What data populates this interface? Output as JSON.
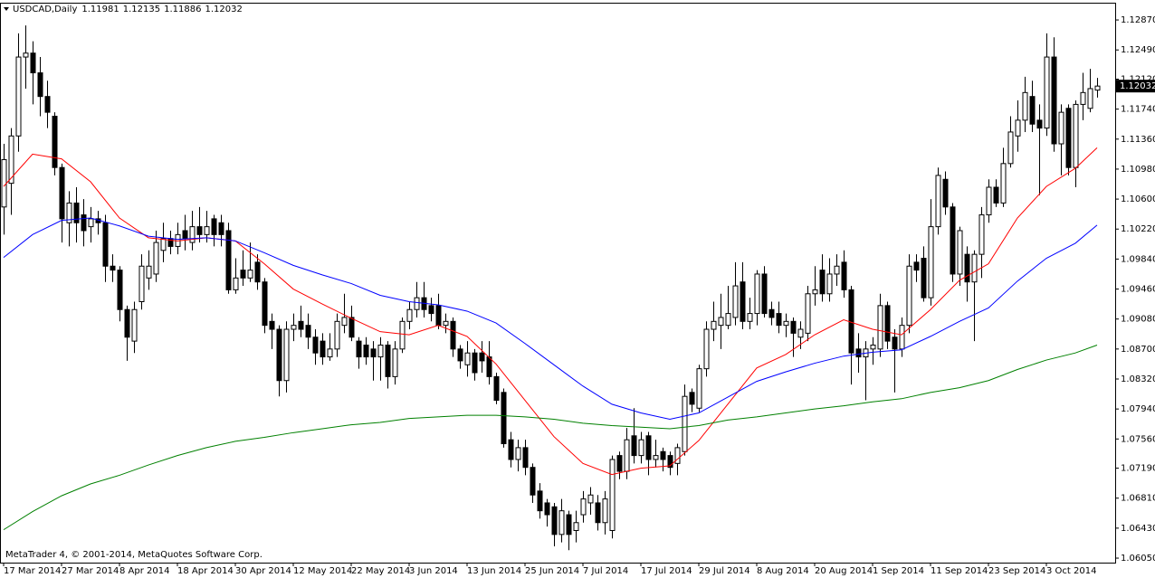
{
  "chart_data": {
    "type": "candlestick",
    "symbol": "USDCAD,Daily",
    "footer": "MetaTrader 4, © 2001-2014, MetaQuotes Software Corp.",
    "categories": [
      "17 Mar 2014",
      null,
      null,
      null,
      null,
      null,
      null,
      null,
      "27 Mar 2014",
      null,
      null,
      null,
      null,
      null,
      null,
      null,
      "8 Apr 2014",
      null,
      null,
      null,
      null,
      null,
      null,
      null,
      "18 Apr 2014",
      null,
      null,
      null,
      null,
      null,
      null,
      null,
      "30 Apr 2014",
      null,
      null,
      null,
      null,
      null,
      null,
      null,
      "12 May 2014",
      null,
      null,
      null,
      null,
      null,
      null,
      null,
      "22 May 2014",
      null,
      null,
      null,
      null,
      null,
      null,
      null,
      "3 Jun 2014",
      null,
      null,
      null,
      null,
      null,
      null,
      null,
      "13 Jun 2014",
      null,
      null,
      null,
      null,
      null,
      null,
      null,
      "25 Jun 2014",
      null,
      null,
      null,
      null,
      null,
      null,
      null,
      "7 Jul 2014",
      null,
      null,
      null,
      null,
      null,
      null,
      null,
      "17 Jul 2014",
      null,
      null,
      null,
      null,
      null,
      null,
      null,
      "29 Jul 2014",
      null,
      null,
      null,
      null,
      null,
      null,
      null,
      "8 Aug 2014",
      null,
      null,
      null,
      null,
      null,
      null,
      null,
      "20 Aug 2014",
      null,
      null,
      null,
      null,
      null,
      null,
      null,
      "1 Sep 2014",
      null,
      null,
      null,
      null,
      null,
      null,
      null,
      "11 Sep 2014",
      null,
      null,
      null,
      null,
      null,
      null,
      null,
      "23 Sep 2014",
      null,
      null,
      null,
      null,
      null,
      null,
      null,
      "3 Oct 2014",
      null,
      null,
      null,
      null,
      null,
      null,
      null
    ],
    "open": [
      1.105,
      1.108,
      1.114,
      1.124,
      1.1245,
      1.122,
      1.119,
      1.1165,
      1.11,
      1.103,
      1.1055,
      1.104,
      1.1025,
      1.1035,
      1.103,
      1.0975,
      1.097,
      1.092,
      1.088,
      1.093,
      1.096,
      1.0965,
      1.0995,
      1.101,
      1.1,
      1.102,
      1.1005,
      1.1025,
      1.1015,
      1.1035,
      1.103,
      1.102,
      1.0945,
      1.097,
      1.096,
      1.098,
      1.0955,
      1.0905,
      1.0895,
      1.083,
      1.0895,
      1.0905,
      1.09,
      1.0885,
      1.088,
      1.086,
      1.087,
      1.09,
      1.091,
      1.088,
      1.0875,
      1.087,
      1.086,
      1.0875,
      1.0835,
      1.087,
      1.0905,
      1.092,
      1.0935,
      1.0925,
      1.0925,
      1.09,
      1.0905,
      1.087,
      1.085,
      1.0865,
      1.0865,
      1.086,
      1.0835,
      1.0815,
      1.0755,
      1.073,
      1.0745,
      1.072,
      1.069,
      1.0675,
      1.067,
      1.0635,
      1.066,
      1.064,
      1.066,
      1.0675,
      1.0675,
      1.065,
      1.064,
      1.0735,
      1.0715,
      1.076,
      1.0735,
      1.076,
      1.073,
      1.074,
      1.0735,
      1.0725,
      1.074,
      1.0815,
      1.0795,
      1.0845,
      1.0895,
      1.09,
      1.09,
      1.091,
      1.0955,
      1.0905,
      1.0915,
      1.0965,
      1.092,
      1.0915,
      1.09,
      1.0905,
      1.0885,
      1.089,
      1.094,
      1.097,
      1.094,
      1.0965,
      1.098,
      1.0945,
      1.087,
      1.086,
      1.087,
      1.087,
      1.0925,
      1.0885,
      1.087,
      1.09,
      1.098,
      1.0985,
      1.0935,
      1.1025,
      1.1085,
      1.105,
      1.0965,
      1.099,
      1.0955,
      1.099,
      1.104,
      1.1075,
      1.1055,
      1.1105,
      1.114,
      1.116,
      1.119,
      1.116,
      1.115,
      1.124,
      1.113,
      1.1175,
      1.11,
      1.118,
      1.1175,
      1.11981
    ],
    "high": [
      1.113,
      1.115,
      1.127,
      1.128,
      1.126,
      1.124,
      1.121,
      1.117,
      1.1105,
      1.107,
      1.1075,
      1.106,
      1.105,
      1.1045,
      1.104,
      1.099,
      1.0975,
      1.0925,
      1.093,
      1.099,
      1.0995,
      1.102,
      1.103,
      1.102,
      1.103,
      1.104,
      1.1045,
      1.105,
      1.1045,
      1.104,
      1.104,
      1.103,
      1.0985,
      1.0995,
      1.1005,
      1.099,
      1.096,
      1.0915,
      1.09,
      1.0905,
      1.0915,
      1.0925,
      1.0915,
      1.0895,
      1.089,
      1.089,
      1.0915,
      1.094,
      1.0925,
      1.0885,
      1.0885,
      1.088,
      1.0885,
      1.088,
      1.088,
      1.091,
      1.093,
      1.0955,
      1.0955,
      1.0935,
      1.094,
      1.0915,
      1.091,
      1.0875,
      1.088,
      1.087,
      1.088,
      1.088,
      1.084,
      1.082,
      1.0765,
      1.0755,
      1.0755,
      1.0725,
      1.07,
      1.068,
      1.0675,
      1.068,
      1.0665,
      1.0665,
      1.069,
      1.0695,
      1.0685,
      1.069,
      1.0735,
      1.074,
      1.077,
      1.0795,
      1.0765,
      1.0765,
      1.0755,
      1.0745,
      1.074,
      1.075,
      1.0825,
      1.082,
      1.085,
      1.0905,
      1.093,
      1.094,
      1.095,
      1.098,
      1.098,
      1.0935,
      1.097,
      1.0975,
      1.093,
      1.093,
      1.0915,
      1.091,
      1.0905,
      1.095,
      1.0975,
      1.099,
      1.0985,
      1.099,
      1.0995,
      1.095,
      1.089,
      1.088,
      1.0885,
      1.094,
      1.093,
      1.0895,
      1.091,
      1.099,
      1.099,
      1.1,
      1.106,
      1.11,
      1.1095,
      1.1055,
      1.1025,
      1.1,
      1.0995,
      1.105,
      1.1085,
      1.1085,
      1.1125,
      1.1165,
      1.1185,
      1.1215,
      1.121,
      1.118,
      1.127,
      1.1265,
      1.118,
      1.118,
      1.1185,
      1.122,
      1.1225,
      1.12135
    ],
    "low": [
      1.1015,
      1.104,
      1.112,
      1.12,
      1.118,
      1.1165,
      1.115,
      1.109,
      1.1005,
      1.1,
      1.1005,
      1.1,
      1.1005,
      1.1015,
      1.0955,
      1.0955,
      1.0905,
      1.0855,
      1.0865,
      1.092,
      1.0945,
      1.0955,
      1.098,
      1.099,
      1.099,
      1.0995,
      1.0995,
      1.1005,
      1.1005,
      1.1,
      1.1,
      1.094,
      1.094,
      1.095,
      1.0955,
      1.0945,
      1.089,
      1.087,
      1.081,
      1.0815,
      1.088,
      1.0885,
      1.087,
      1.085,
      1.085,
      1.0855,
      1.086,
      1.089,
      1.088,
      1.0845,
      1.085,
      1.083,
      1.083,
      1.082,
      1.0825,
      1.0865,
      1.0895,
      1.091,
      1.091,
      1.0905,
      1.0895,
      1.089,
      1.086,
      1.0845,
      1.0835,
      1.083,
      1.084,
      1.0825,
      1.08,
      1.0745,
      1.072,
      1.0715,
      1.071,
      1.0675,
      1.0655,
      1.0645,
      1.062,
      1.0625,
      1.0615,
      1.0625,
      1.065,
      1.066,
      1.064,
      1.0635,
      1.063,
      1.0705,
      1.0705,
      1.0725,
      1.0725,
      1.071,
      1.072,
      1.0715,
      1.071,
      1.071,
      1.0735,
      1.079,
      1.079,
      1.0835,
      1.088,
      1.087,
      1.0895,
      1.09,
      1.0895,
      1.0895,
      1.09,
      1.091,
      1.09,
      1.089,
      1.0885,
      1.086,
      1.087,
      1.088,
      1.0925,
      1.093,
      1.093,
      1.095,
      1.0935,
      1.0825,
      1.084,
      1.0805,
      1.085,
      1.086,
      1.087,
      1.0815,
      1.086,
      1.089,
      1.0955,
      1.093,
      1.0925,
      1.1015,
      1.104,
      1.0955,
      1.095,
      1.093,
      1.088,
      1.096,
      1.103,
      1.105,
      1.105,
      1.11,
      1.112,
      1.1145,
      1.1145,
      1.1065,
      1.114,
      1.112,
      1.109,
      1.109,
      1.1075,
      1.116,
      1.117,
      1.11886
    ],
    "close": [
      1.111,
      1.114,
      1.124,
      1.1245,
      1.122,
      1.119,
      1.117,
      1.11,
      1.1035,
      1.1055,
      1.103,
      1.102,
      1.1035,
      1.103,
      1.0975,
      1.097,
      1.092,
      1.0885,
      1.092,
      1.0975,
      1.0975,
      1.1005,
      1.101,
      1.1,
      1.1015,
      1.101,
      1.1025,
      1.1015,
      1.1025,
      1.1015,
      1.1015,
      1.0945,
      1.096,
      1.096,
      1.097,
      1.0955,
      1.09,
      1.0895,
      1.083,
      1.0895,
      1.09,
      1.0895,
      1.0885,
      1.0865,
      1.086,
      1.087,
      1.0905,
      1.091,
      1.0885,
      1.086,
      1.086,
      1.086,
      1.0875,
      1.0835,
      1.087,
      1.0905,
      1.092,
      1.0935,
      1.092,
      1.0915,
      1.09,
      1.0905,
      1.087,
      1.0855,
      1.0865,
      1.084,
      1.0855,
      1.0835,
      1.0805,
      1.075,
      1.073,
      1.0745,
      1.072,
      1.0685,
      1.0665,
      1.066,
      1.0635,
      1.0665,
      1.0635,
      1.065,
      1.068,
      1.0685,
      1.065,
      1.068,
      1.073,
      1.0715,
      1.0755,
      1.0735,
      1.0755,
      1.073,
      1.0735,
      1.073,
      1.072,
      1.0745,
      1.081,
      1.08,
      1.0845,
      1.0895,
      1.0905,
      1.091,
      1.0915,
      1.095,
      1.0905,
      1.0915,
      1.0965,
      1.0915,
      1.091,
      1.09,
      1.0905,
      1.089,
      1.0895,
      1.094,
      1.0945,
      1.094,
      1.0965,
      1.0975,
      1.0945,
      1.0865,
      1.086,
      1.087,
      1.0875,
      1.0925,
      1.088,
      1.087,
      1.09,
      1.0975,
      1.097,
      1.0935,
      1.1025,
      1.109,
      1.105,
      1.0965,
      1.102,
      1.0955,
      1.099,
      1.104,
      1.1075,
      1.1055,
      1.1105,
      1.1145,
      1.116,
      1.1195,
      1.1155,
      1.115,
      1.124,
      1.113,
      1.117,
      1.11,
      1.118,
      1.1195,
      1.12,
      1.12032
    ],
    "series": [
      {
        "color": "#ff0000",
        "x": [
          0,
          4,
          8,
          12,
          16,
          20,
          24,
          28,
          32,
          36,
          40,
          44,
          48,
          52,
          56,
          60,
          64,
          68,
          72,
          76,
          80,
          84,
          88,
          92,
          96,
          100,
          104,
          108,
          112,
          116,
          120,
          124,
          128,
          132,
          136,
          140,
          144,
          148,
          151
        ],
        "values": [
          1.1076,
          1.1117,
          1.1111,
          1.1082,
          1.1036,
          1.1011,
          1.1007,
          1.1011,
          1.1007,
          1.0978,
          1.0946,
          1.0927,
          1.0909,
          1.0892,
          1.0888,
          1.09,
          1.0886,
          1.0851,
          1.0805,
          1.0759,
          1.0725,
          1.0711,
          1.0719,
          1.0722,
          1.0754,
          1.08,
          1.0846,
          1.0863,
          1.0888,
          1.0907,
          1.0895,
          1.0888,
          1.092,
          1.0957,
          1.0978,
          1.1036,
          1.1076,
          1.1099,
          1.1125
        ]
      },
      {
        "color": "#0000ff",
        "x": [
          0,
          4,
          8,
          12,
          16,
          20,
          24,
          28,
          32,
          36,
          40,
          44,
          48,
          52,
          56,
          60,
          64,
          68,
          72,
          76,
          80,
          84,
          88,
          92,
          96,
          100,
          104,
          108,
          112,
          116,
          120,
          124,
          128,
          132,
          136,
          140,
          144,
          148,
          151
        ],
        "values": [
          1.0986,
          1.1015,
          1.1033,
          1.1036,
          1.1026,
          1.1013,
          1.1009,
          1.1011,
          1.1007,
          1.0992,
          1.0976,
          1.0964,
          1.0953,
          1.0938,
          1.093,
          1.0926,
          1.0918,
          1.0903,
          1.0877,
          1.085,
          1.0823,
          1.08,
          1.0789,
          1.0781,
          1.0789,
          1.0809,
          1.0829,
          1.0841,
          1.0852,
          1.0861,
          1.0866,
          1.0869,
          1.0886,
          1.0905,
          1.0922,
          1.0956,
          1.0985,
          1.1004,
          1.1027
        ]
      },
      {
        "color": "#008000",
        "x": [
          0,
          4,
          8,
          12,
          16,
          20,
          24,
          28,
          32,
          36,
          40,
          44,
          48,
          52,
          56,
          60,
          64,
          68,
          72,
          76,
          80,
          84,
          88,
          92,
          96,
          100,
          104,
          108,
          112,
          116,
          120,
          124,
          128,
          132,
          136,
          140,
          144,
          148,
          151
        ],
        "values": [
          1.0641,
          1.0664,
          1.0684,
          1.0699,
          1.071,
          1.0723,
          1.0735,
          1.0745,
          1.0753,
          1.0758,
          1.0764,
          1.0769,
          1.0774,
          1.0777,
          1.0782,
          1.0784,
          1.0786,
          1.0786,
          1.0784,
          1.0781,
          1.0776,
          1.0773,
          1.0771,
          1.0769,
          1.0773,
          1.078,
          1.0784,
          1.0789,
          1.0794,
          1.0798,
          1.0803,
          1.0807,
          1.0815,
          1.0821,
          1.083,
          1.0844,
          1.0856,
          1.0865,
          1.0875
        ]
      }
    ],
    "ylim": [
      1.05993,
      1.13077
    ],
    "yticks": [
      {
        "value": 1.1287,
        "label": "1.12870"
      },
      {
        "value": 1.1249,
        "label": "1.12490"
      },
      {
        "value": 1.1212,
        "label": "1.12120"
      },
      {
        "value": 1.1174,
        "label": "1.11740"
      },
      {
        "value": 1.1136,
        "label": "1.11360"
      },
      {
        "value": 1.1098,
        "label": "1.10980"
      },
      {
        "value": 1.106,
        "label": "1.10600"
      },
      {
        "value": 1.1022,
        "label": "1.10220"
      },
      {
        "value": 1.0984,
        "label": "1.09840"
      },
      {
        "value": 1.0946,
        "label": "1.09460"
      },
      {
        "value": 1.0908,
        "label": "1.09080"
      },
      {
        "value": 1.087,
        "label": "1.08700"
      },
      {
        "value": 1.0832,
        "label": "1.08320"
      },
      {
        "value": 1.0794,
        "label": "1.07940"
      },
      {
        "value": 1.0756,
        "label": "1.07560"
      },
      {
        "value": 1.0719,
        "label": "1.07190"
      },
      {
        "value": 1.0681,
        "label": "1.06810"
      },
      {
        "value": 1.0643,
        "label": "1.06430"
      },
      {
        "value": 1.0605,
        "label": "1.06050"
      }
    ],
    "grid": false
  }
}
